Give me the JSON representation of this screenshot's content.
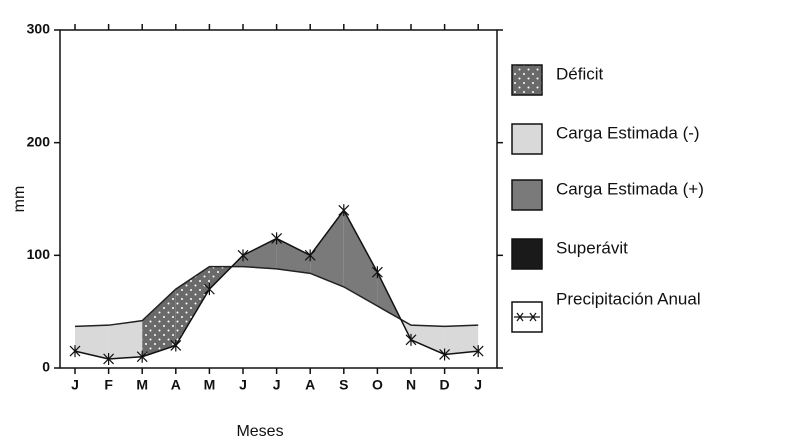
{
  "chart_data": {
    "type": "area",
    "categories": [
      "J",
      "F",
      "M",
      "A",
      "M",
      "J",
      "J",
      "A",
      "S",
      "O",
      "N",
      "D",
      "J"
    ],
    "series": [
      {
        "color": "#222222",
        "values": [
          37,
          38,
          42,
          70,
          90,
          90,
          88,
          84,
          72,
          55,
          38,
          37,
          38
        ]
      },
      {
        "name": "Precipitación Anual",
        "color": "#111111",
        "values": [
          15,
          8,
          10,
          20,
          70,
          100,
          115,
          100,
          140,
          85,
          25,
          12,
          15
        ]
      }
    ],
    "legend": [
      {
        "name": "Déficit",
        "color": "#6a6a6a"
      },
      {
        "name": "Carga Estimada (-)",
        "color": "#d9d9d9"
      },
      {
        "name": "Carga Estimada (+)",
        "color": "#7a7a7a"
      },
      {
        "name": "Superávit",
        "color": "#1a1a1a"
      }
    ],
    "ylabel": "mm",
    "xlabel": "Meses",
    "ylim": [
      0,
      300
    ],
    "yticks": [
      0,
      100,
      200,
      300
    ]
  }
}
